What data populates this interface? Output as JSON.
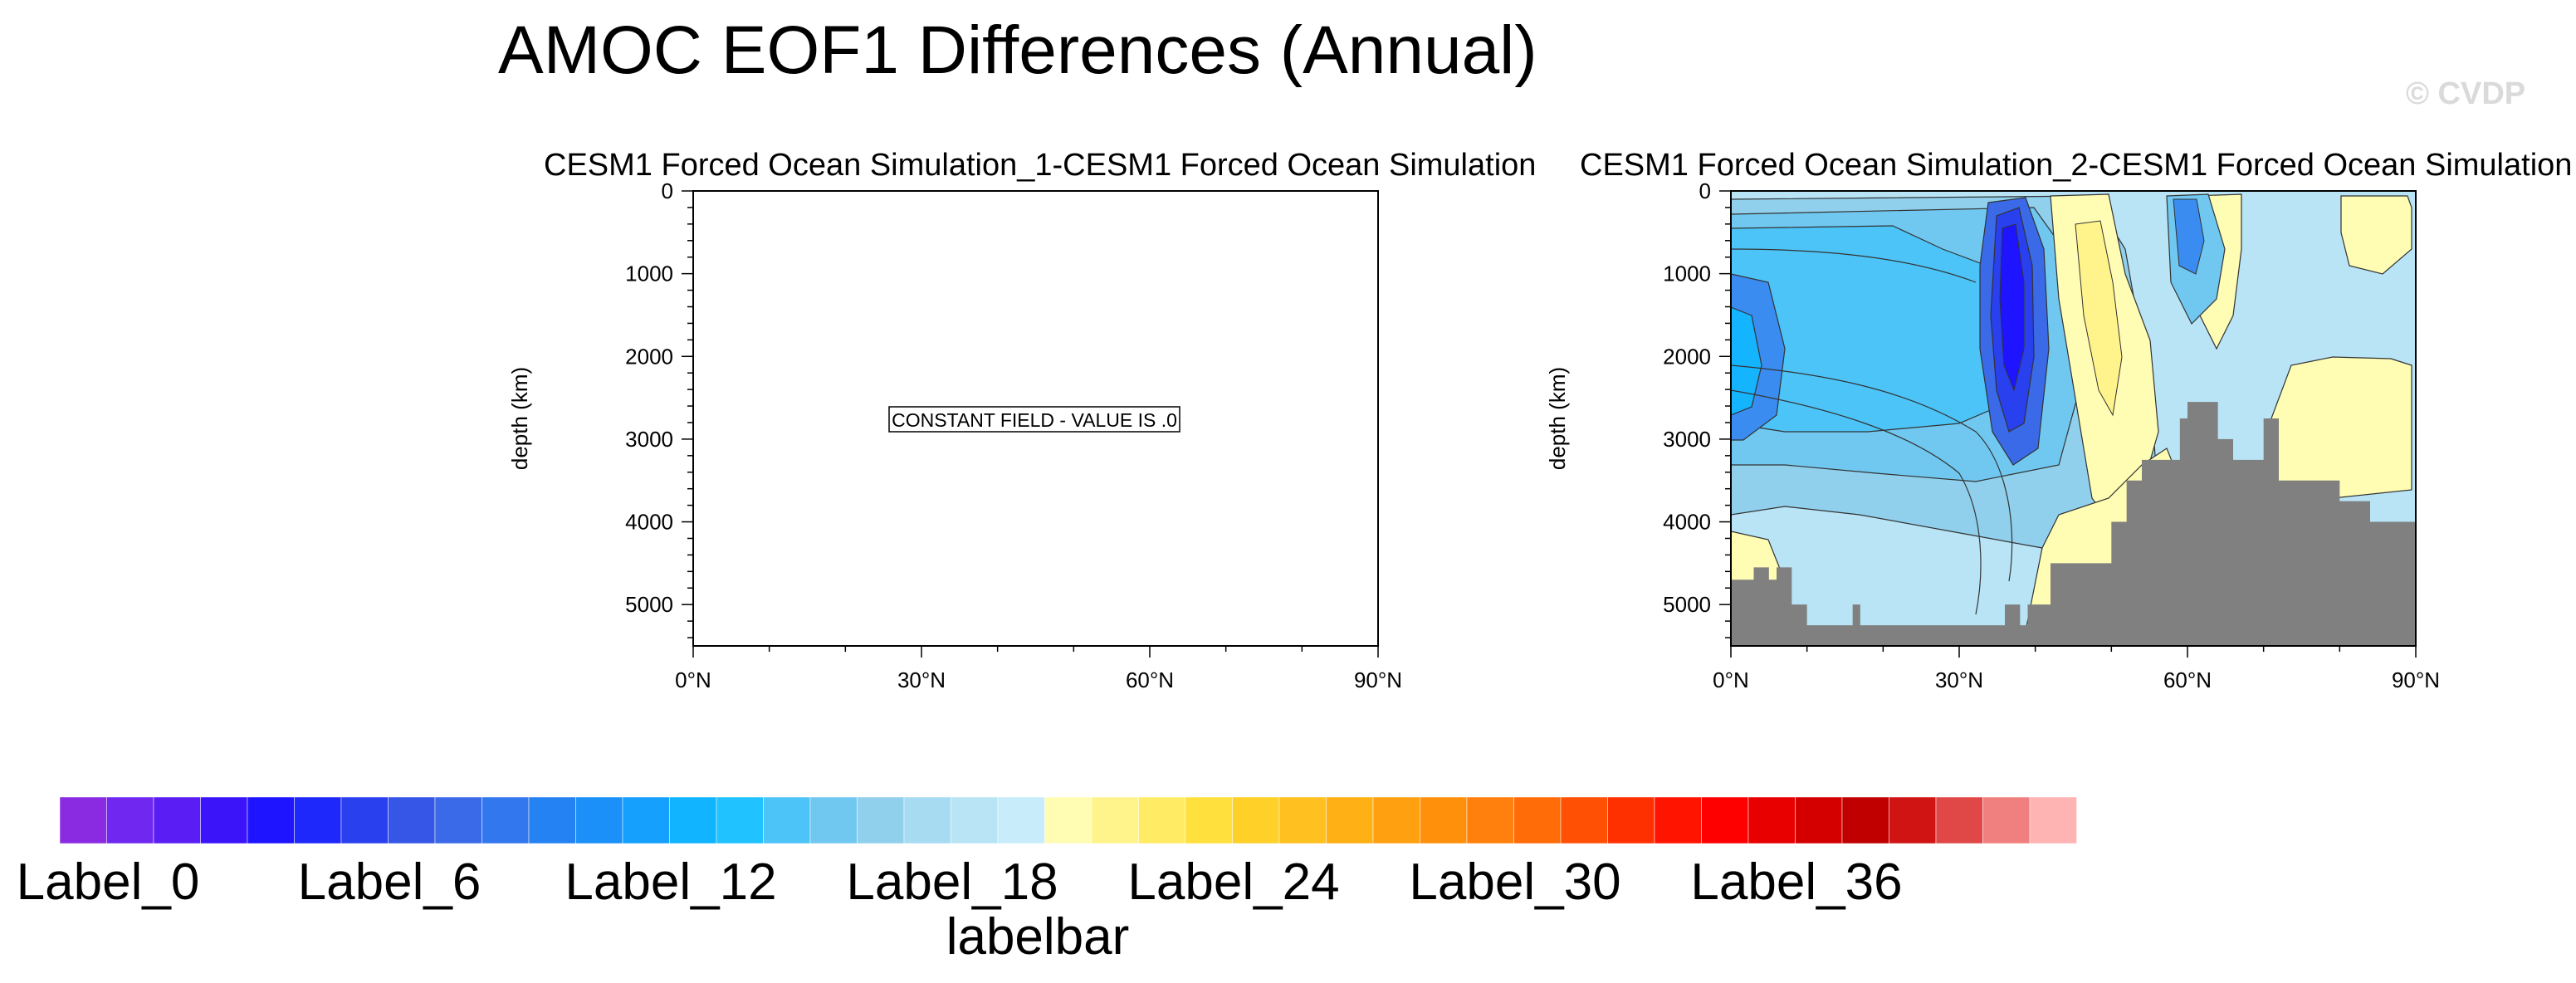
{
  "page": {
    "title": "AMOC EOF1 Differences (Annual)",
    "watermark": "© CVDP"
  },
  "chart_data": [
    {
      "type": "heatmap",
      "title": "CESM1 Forced Ocean Simulation_1-CESM1 Forced Ocean Simulation",
      "ylabel": "depth (km)",
      "xlabel": "",
      "x_ticks": [
        "0°N",
        "30°N",
        "60°N",
        "90°N"
      ],
      "x_tick_values": [
        0,
        30,
        60,
        90
      ],
      "y_ticks": [
        "0",
        "1000",
        "2000",
        "3000",
        "4000",
        "5000"
      ],
      "y_tick_values": [
        0,
        1000,
        2000,
        3000,
        4000,
        5000
      ],
      "xlim": [
        0,
        90
      ],
      "ylim": [
        5500,
        0
      ],
      "annotation": "CONSTANT FIELD - VALUE IS .0"
    },
    {
      "type": "heatmap",
      "title": "CESM1 Forced Ocean Simulation_2-CESM1 Forced Ocean Simulation",
      "ylabel": "depth (km)",
      "xlabel": "",
      "x_ticks": [
        "0°N",
        "30°N",
        "60°N",
        "90°N"
      ],
      "x_tick_values": [
        0,
        30,
        60,
        90
      ],
      "y_ticks": [
        "0",
        "1000",
        "2000",
        "3000",
        "4000",
        "5000"
      ],
      "y_tick_values": [
        0,
        1000,
        2000,
        3000,
        4000,
        5000
      ],
      "xlim": [
        0,
        90
      ],
      "ylim": [
        5500,
        0
      ],
      "bathymetry": [
        {
          "lat": 0,
          "depth": 4700
        },
        {
          "lat": 3,
          "depth": 4700
        },
        {
          "lat": 3,
          "depth": 4550
        },
        {
          "lat": 5,
          "depth": 4550
        },
        {
          "lat": 5,
          "depth": 4700
        },
        {
          "lat": 6,
          "depth": 4700
        },
        {
          "lat": 6,
          "depth": 4550
        },
        {
          "lat": 8,
          "depth": 4550
        },
        {
          "lat": 8,
          "depth": 5000
        },
        {
          "lat": 10,
          "depth": 5000
        },
        {
          "lat": 10,
          "depth": 5250
        },
        {
          "lat": 16,
          "depth": 5250
        },
        {
          "lat": 16,
          "depth": 5000
        },
        {
          "lat": 17,
          "depth": 5000
        },
        {
          "lat": 17,
          "depth": 5250
        },
        {
          "lat": 36,
          "depth": 5250
        },
        {
          "lat": 36,
          "depth": 5000
        },
        {
          "lat": 38,
          "depth": 5000
        },
        {
          "lat": 38,
          "depth": 5250
        },
        {
          "lat": 39,
          "depth": 5250
        },
        {
          "lat": 39,
          "depth": 5000
        },
        {
          "lat": 42,
          "depth": 5000
        },
        {
          "lat": 42,
          "depth": 4500
        },
        {
          "lat": 50,
          "depth": 4500
        },
        {
          "lat": 50,
          "depth": 4000
        },
        {
          "lat": 52,
          "depth": 4000
        },
        {
          "lat": 52,
          "depth": 3500
        },
        {
          "lat": 54,
          "depth": 3500
        },
        {
          "lat": 54,
          "depth": 3250
        },
        {
          "lat": 59,
          "depth": 3250
        },
        {
          "lat": 59,
          "depth": 2750
        },
        {
          "lat": 60,
          "depth": 2750
        },
        {
          "lat": 60,
          "depth": 2550
        },
        {
          "lat": 64,
          "depth": 2550
        },
        {
          "lat": 64,
          "depth": 3000
        },
        {
          "lat": 66,
          "depth": 3000
        },
        {
          "lat": 66,
          "depth": 3250
        },
        {
          "lat": 70,
          "depth": 3250
        },
        {
          "lat": 70,
          "depth": 2750
        },
        {
          "lat": 72,
          "depth": 2750
        },
        {
          "lat": 72,
          "depth": 3500
        },
        {
          "lat": 80,
          "depth": 3500
        },
        {
          "lat": 80,
          "depth": 3750
        },
        {
          "lat": 84,
          "depth": 3750
        },
        {
          "lat": 84,
          "depth": 4000
        },
        {
          "lat": 90,
          "depth": 4000
        }
      ]
    }
  ],
  "labelbar": {
    "title": "labelbar",
    "labels": [
      "Label_0",
      "Label_6",
      "Label_12",
      "Label_18",
      "Label_24",
      "Label_30",
      "Label_36"
    ],
    "label_indices": [
      0,
      6,
      12,
      18,
      24,
      30,
      36
    ],
    "colors": [
      "#8a2be2",
      "#7028f0",
      "#5a1ef5",
      "#3c14fa",
      "#1e14ff",
      "#1e28fa",
      "#2840ee",
      "#3556e6",
      "#3a6ae8",
      "#3277ee",
      "#2482f2",
      "#1a90f8",
      "#14a0fc",
      "#10b4ff",
      "#20c2ff",
      "#4cc4f8",
      "#70c8f0",
      "#90d0ec",
      "#a6dbf2",
      "#b8e4f6",
      "#c8ecfa",
      "#fffcb4",
      "#fff48c",
      "#ffec64",
      "#ffe03c",
      "#ffd028",
      "#ffc020",
      "#ffb014",
      "#ffa010",
      "#ff900c",
      "#ff800c",
      "#ff6c08",
      "#ff5004",
      "#ff3000",
      "#ff1400",
      "#ff0000",
      "#e80000",
      "#d40000",
      "#c00000",
      "#d01414",
      "#e04848",
      "#f08080",
      "#ffb4b4"
    ]
  }
}
